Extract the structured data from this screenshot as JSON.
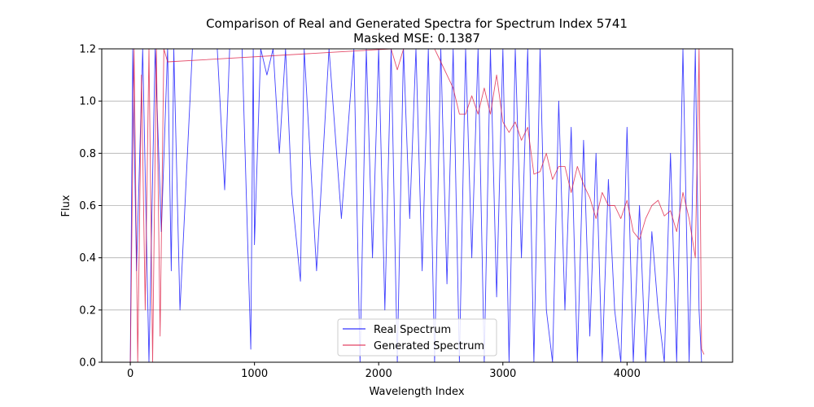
{
  "chart_data": {
    "type": "line",
    "title": "Comparison of Real and Generated Spectra for Spectrum Index 5741",
    "subtitle": "Masked MSE: 0.1387",
    "xlabel": "Wavelength Index",
    "ylabel": "Flux",
    "xlim": [
      -230,
      4850
    ],
    "ylim": [
      0,
      1.2
    ],
    "xticks": [
      "0",
      "1000",
      "2000",
      "3000",
      "4000"
    ],
    "yticks": [
      "0.0",
      "0.2",
      "0.4",
      "0.6",
      "0.8",
      "1.0",
      "1.2"
    ],
    "grid": "horizontal",
    "legend_position": "bottom-center",
    "series": [
      {
        "name": "Real Spectrum",
        "color": "#0000ff",
        "x": [
          0,
          20,
          50,
          100,
          150,
          200,
          250,
          300,
          330,
          350,
          400,
          500,
          600,
          700,
          760,
          800,
          900,
          970,
          990,
          1000,
          1050,
          1100,
          1150,
          1200,
          1250,
          1300,
          1370,
          1400,
          1500,
          1600,
          1700,
          1800,
          1850,
          1900,
          1950,
          2000,
          2050,
          2100,
          2150,
          2200,
          2250,
          2300,
          2350,
          2400,
          2450,
          2500,
          2550,
          2600,
          2650,
          2700,
          2750,
          2800,
          2850,
          2900,
          2950,
          3000,
          3050,
          3100,
          3150,
          3200,
          3250,
          3300,
          3350,
          3400,
          3450,
          3500,
          3550,
          3600,
          3650,
          3700,
          3750,
          3800,
          3850,
          3900,
          3950,
          4000,
          4050,
          4100,
          4150,
          4200,
          4250,
          4300,
          4350,
          4400,
          4450,
          4500,
          4550,
          4580,
          4600
        ],
        "values": [
          0.0,
          1.2,
          0.35,
          1.2,
          0.0,
          1.2,
          0.5,
          1.2,
          0.35,
          1.2,
          0.2,
          1.2,
          1.2,
          1.2,
          0.66,
          1.2,
          1.2,
          0.05,
          1.2,
          0.45,
          1.2,
          1.1,
          1.2,
          0.8,
          1.2,
          0.65,
          0.31,
          1.2,
          0.35,
          1.2,
          0.55,
          1.2,
          0.0,
          1.2,
          0.4,
          1.2,
          0.2,
          1.2,
          0.0,
          1.2,
          0.55,
          1.2,
          0.35,
          1.2,
          0.0,
          1.2,
          0.3,
          1.2,
          0.0,
          1.2,
          0.4,
          1.2,
          0.0,
          1.2,
          0.25,
          1.2,
          0.0,
          1.2,
          0.4,
          1.2,
          0.0,
          1.2,
          0.2,
          0.0,
          1.0,
          0.2,
          0.9,
          0.0,
          0.85,
          0.1,
          0.8,
          0.0,
          0.7,
          0.2,
          0.0,
          0.9,
          0.0,
          0.6,
          0.0,
          0.5,
          0.2,
          0.0,
          0.8,
          0.0,
          1.2,
          0.0,
          1.2,
          0.2,
          0.0
        ]
      },
      {
        "name": "Generated Spectrum",
        "color": "#dc143c",
        "x": [
          0,
          30,
          60,
          90,
          120,
          150,
          180,
          210,
          240,
          270,
          300,
          2100,
          2150,
          2200,
          2450,
          2500,
          2550,
          2600,
          2650,
          2700,
          2750,
          2800,
          2850,
          2900,
          2950,
          3000,
          3050,
          3100,
          3150,
          3200,
          3250,
          3300,
          3350,
          3400,
          3450,
          3500,
          3550,
          3600,
          3650,
          3700,
          3750,
          3800,
          3850,
          3900,
          3950,
          4000,
          4050,
          4100,
          4150,
          4200,
          4250,
          4300,
          4350,
          4400,
          4450,
          4500,
          4550,
          4580,
          4600,
          4620
        ],
        "values": [
          0.0,
          1.2,
          0.0,
          1.1,
          0.2,
          1.2,
          0.0,
          1.2,
          0.1,
          1.2,
          1.15,
          1.2,
          1.12,
          1.2,
          1.2,
          1.15,
          1.1,
          1.05,
          0.95,
          0.95,
          1.02,
          0.95,
          1.05,
          0.95,
          1.1,
          0.92,
          0.88,
          0.92,
          0.85,
          0.9,
          0.72,
          0.73,
          0.8,
          0.7,
          0.75,
          0.75,
          0.65,
          0.75,
          0.68,
          0.63,
          0.55,
          0.65,
          0.6,
          0.6,
          0.55,
          0.62,
          0.5,
          0.47,
          0.55,
          0.6,
          0.62,
          0.56,
          0.58,
          0.5,
          0.65,
          0.55,
          0.4,
          1.2,
          0.05,
          0.03
        ]
      }
    ]
  }
}
